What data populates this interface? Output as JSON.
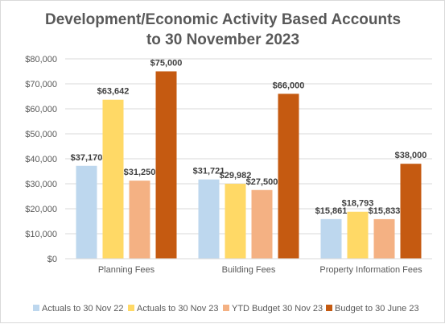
{
  "chart_data": {
    "type": "bar",
    "title_lines": [
      "Development/Economic Activity Based Accounts",
      "to 30 November 2023"
    ],
    "categories": [
      "Planning Fees",
      "Building Fees",
      "Property Information Fees"
    ],
    "series": [
      {
        "name": "Actuals to 30 Nov 22",
        "color": "#bdd7ee",
        "values": [
          37170,
          31721,
          15861
        ],
        "labels": [
          "$37,170",
          "$31,721",
          "$15,861"
        ]
      },
      {
        "name": "Actuals to 30 Nov 23",
        "color": "#ffd966",
        "values": [
          63642,
          29982,
          18793
        ],
        "labels": [
          "$63,642",
          "$29,982",
          "$18,793"
        ]
      },
      {
        "name": "YTD Budget 30 Nov 23",
        "color": "#f4b183",
        "values": [
          31250,
          27500,
          15833
        ],
        "labels": [
          "$31,250",
          "$27,500",
          "$15,833"
        ]
      },
      {
        "name": "Budget to 30 June 23",
        "color": "#c55a11",
        "values": [
          75000,
          66000,
          38000
        ],
        "labels": [
          "$75,000",
          "$66,000",
          "$38,000"
        ]
      }
    ],
    "ylim": [
      0,
      80000
    ],
    "y_ticks": [
      0,
      10000,
      20000,
      30000,
      40000,
      50000,
      60000,
      70000,
      80000
    ],
    "y_tick_labels": [
      "$0",
      "$10,000",
      "$20,000",
      "$30,000",
      "$40,000",
      "$50,000",
      "$60,000",
      "$70,000",
      "$80,000"
    ],
    "grid": true,
    "legend_position": "bottom",
    "gridline_color": "#d9d9d9"
  }
}
